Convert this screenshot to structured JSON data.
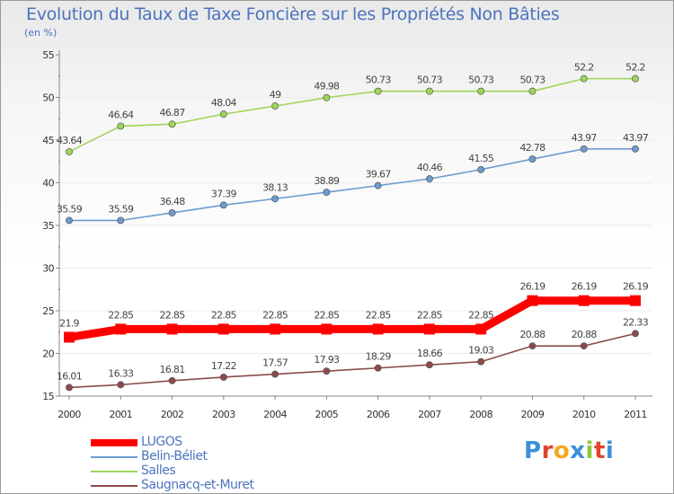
{
  "chart_data": {
    "type": "line",
    "title": "Evolution du Taux de Taxe Foncière sur les Propriétés Non Bâties",
    "subtitle": "(en %)",
    "xlabel": "",
    "ylabel": "(en %)",
    "categories": [
      "2000",
      "2001",
      "2002",
      "2003",
      "2004",
      "2005",
      "2006",
      "2007",
      "2008",
      "2009",
      "2010",
      "2011"
    ],
    "ylim": [
      15,
      55
    ],
    "yticks": [
      15,
      20,
      25,
      30,
      35,
      40,
      45,
      50,
      55
    ],
    "grid": "horizontal",
    "legend_position": "bottom-left",
    "series": [
      {
        "name": "LUGOS",
        "color": "#ff0000",
        "values": [
          21.9,
          22.85,
          22.85,
          22.85,
          22.85,
          22.85,
          22.85,
          22.85,
          22.85,
          26.19,
          26.19,
          26.19
        ],
        "labels": [
          "21.9",
          "22.85",
          "22.85",
          "22.85",
          "22.85",
          "22.85",
          "22.85",
          "22.85",
          "22.85",
          "26.19",
          "26.19",
          "26.19"
        ]
      },
      {
        "name": "Belin-Béliet",
        "color": "#6c9bd0",
        "values": [
          35.59,
          35.59,
          36.48,
          37.39,
          38.13,
          38.89,
          39.67,
          40.46,
          41.55,
          42.78,
          43.97,
          43.97
        ],
        "labels": [
          "35.59",
          "35.59",
          "36.48",
          "37.39",
          "38.13",
          "38.89",
          "39.67",
          "40.46",
          "41.55",
          "42.78",
          "43.97",
          "43.97"
        ]
      },
      {
        "name": "Salles",
        "color": "#9fd65a",
        "values": [
          43.64,
          46.64,
          46.87,
          48.04,
          49,
          49.98,
          50.73,
          50.73,
          50.73,
          50.73,
          52.2,
          52.2
        ],
        "labels": [
          "43.64",
          "46.64",
          "46.87",
          "48.04",
          "49",
          "49.98",
          "50.73",
          "50.73",
          "50.73",
          "50.73",
          "52.2",
          "52.2"
        ]
      },
      {
        "name": "Saugnacq-et-Muret",
        "color": "#8b4a4a",
        "values": [
          16.01,
          16.33,
          16.81,
          17.22,
          17.57,
          17.93,
          18.29,
          18.66,
          19.03,
          20.88,
          20.88,
          22.33
        ],
        "labels": [
          "16.01",
          "16.33",
          "16.81",
          "17.22",
          "17.57",
          "17.93",
          "18.29",
          "18.66",
          "19.03",
          "20.88",
          "20.88",
          "22.33"
        ]
      }
    ]
  },
  "brand": {
    "letters": [
      "P",
      "r",
      "o",
      "x",
      "i",
      "t",
      "i"
    ],
    "colors": [
      "#3b8fd8",
      "#e2432d",
      "#f3a81c",
      "#3b8fd8",
      "#8dc63f",
      "#e2432d",
      "#3b8fd8"
    ]
  }
}
